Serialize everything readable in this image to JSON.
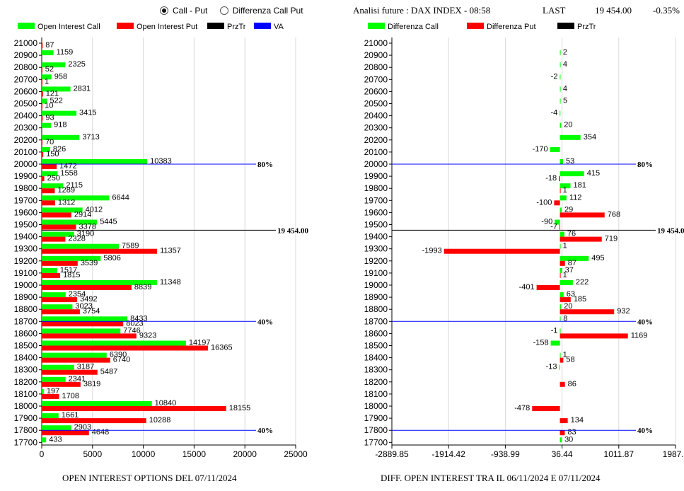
{
  "controls": {
    "radio_options": [
      {
        "label": "Call - Put",
        "selected": true
      },
      {
        "label": "Differenza Call Put",
        "selected": false
      }
    ]
  },
  "header": {
    "title": "Analisi future : DAX INDEX - 08:58",
    "last_label": "LAST",
    "last_value": "19 454.00",
    "change": "-0.35%"
  },
  "colors": {
    "call": "#00ff00",
    "put": "#ff0000",
    "prztr": "#000000",
    "va": "#0000ff"
  },
  "chart_data": [
    {
      "type": "bar",
      "orientation": "horizontal",
      "title": "OPEN INTEREST OPTIONS DEL 07/11/2024",
      "legend": [
        "Open Interest Call",
        "Open Interest Put",
        "PrzTr",
        "VA"
      ],
      "legend_position": "top",
      "grid": true,
      "xlim": [
        0,
        25000
      ],
      "xticks": [
        "0",
        "5000",
        "10000",
        "15000",
        "20000",
        "25000"
      ],
      "categories": [
        "21000",
        "20900",
        "20800",
        "20700",
        "20600",
        "20500",
        "20400",
        "20300",
        "20200",
        "20100",
        "20000",
        "19900",
        "19800",
        "19700",
        "19600",
        "19500",
        "19400",
        "19300",
        "19200",
        "19100",
        "19000",
        "18900",
        "18800",
        "18700",
        "18600",
        "18500",
        "18400",
        "18300",
        "18200",
        "18100",
        "18000",
        "17900",
        "17800",
        "17700"
      ],
      "series": [
        {
          "name": "Open Interest Call",
          "values": [
            0,
            1159,
            2325,
            958,
            2831,
            522,
            3415,
            918,
            3713,
            826,
            10383,
            1558,
            2115,
            6644,
            4012,
            5445,
            3190,
            7589,
            5806,
            1517,
            11348,
            2354,
            3023,
            8433,
            7746,
            14197,
            6390,
            3187,
            2341,
            197,
            10840,
            1661,
            2903,
            433
          ],
          "labels": [
            "",
            "1159",
            "2325",
            "958",
            "2831",
            "522",
            "3415",
            "918",
            "3713",
            "826",
            "10383",
            "1558",
            "2115",
            "6644",
            "4012",
            "5445",
            "3190",
            "7589",
            "5806",
            "1517",
            "11348",
            "2354",
            "3023",
            "8433",
            "7746",
            "14197",
            "6390",
            "3187",
            "2341",
            "197",
            "10840",
            "1661",
            "2903",
            "433"
          ]
        },
        {
          "name": "Open Interest Put",
          "values": [
            87,
            0,
            52,
            1,
            121,
            10,
            93,
            0,
            70,
            150,
            1472,
            250,
            1289,
            1312,
            2914,
            3378,
            2328,
            11357,
            3539,
            1815,
            8839,
            3492,
            3754,
            8023,
            9323,
            16365,
            6740,
            5487,
            3819,
            1708,
            18155,
            10288,
            4648,
            0
          ],
          "labels": [
            "87",
            "",
            "52",
            "1",
            "121",
            "10",
            "93",
            "",
            "70",
            "150",
            "1472",
            "250",
            "1289",
            "1312",
            "2914",
            "3378",
            "2328",
            "11357",
            "3539",
            "1815",
            "8839",
            "3492",
            "3754",
            "8023",
            "9323",
            "16365",
            "6740",
            "5487",
            "3819",
            "1708",
            "18155",
            "10288",
            "4648",
            ""
          ]
        }
      ],
      "lines": [
        {
          "name": "PrzTr",
          "at": "19454.00",
          "label": "19 454.00"
        },
        {
          "name": "VA",
          "at": "20000",
          "label": "80%"
        },
        {
          "name": "VA",
          "at": "18700",
          "label": "40%"
        },
        {
          "name": "VA",
          "at": "17800",
          "label": "40%"
        }
      ]
    },
    {
      "type": "bar",
      "orientation": "horizontal",
      "title": "DIFF. OPEN INTEREST TRA IL 06/11/2024 E 07/11/2024",
      "legend": [
        "Differenza Call",
        "Differenza Put",
        "PrzTr"
      ],
      "legend_position": "top",
      "grid": true,
      "xlim": [
        -2889.85,
        1987.3
      ],
      "xticks": [
        "-2889.85",
        "-1914.42",
        "-938.99",
        "36.44",
        "1011.87",
        "1987.3"
      ],
      "categories": [
        "21000",
        "20900",
        "20800",
        "20700",
        "20600",
        "20500",
        "20400",
        "20300",
        "20200",
        "20100",
        "20000",
        "19900",
        "19800",
        "19700",
        "19600",
        "19500",
        "19400",
        "19300",
        "19200",
        "19100",
        "19000",
        "18900",
        "18800",
        "18700",
        "18600",
        "18500",
        "18400",
        "18300",
        "18200",
        "18100",
        "18000",
        "17900",
        "17800",
        "17700"
      ],
      "series": [
        {
          "name": "Differenza Call",
          "values": [
            0,
            2,
            4,
            -2,
            4,
            5,
            -4,
            20,
            354,
            -170,
            53,
            415,
            181,
            112,
            29,
            -90,
            76,
            1,
            495,
            37,
            222,
            63,
            20,
            8,
            -1,
            -158,
            1,
            -13,
            0,
            0,
            0,
            0,
            0,
            30
          ],
          "labels": [
            "",
            "2",
            "4",
            "-2",
            "4",
            "5",
            "-4",
            "20",
            "354",
            "-170",
            "53",
            "415",
            "181",
            "112",
            "29",
            "-90",
            "76",
            "1",
            "495",
            "37",
            "222",
            "63",
            "20",
            "8",
            "-1",
            "-158",
            "1",
            "-13",
            "",
            "",
            "",
            "",
            "",
            "30"
          ]
        },
        {
          "name": "Differenza Put",
          "values": [
            0,
            0,
            0,
            0,
            0,
            0,
            0,
            0,
            0,
            0,
            0,
            -18,
            1,
            -100,
            768,
            -7,
            719,
            -1993,
            87,
            1,
            -401,
            185,
            932,
            0,
            1169,
            0,
            58,
            0,
            86,
            0,
            -478,
            134,
            83,
            0
          ],
          "labels": [
            "",
            "",
            "",
            "",
            "",
            "",
            "",
            "",
            "",
            "",
            "",
            "-18",
            "1",
            "-100",
            "768",
            "-7",
            "719",
            "-1993",
            "87",
            "1",
            "-401",
            "185",
            "932",
            "",
            "1169",
            "",
            "58",
            "",
            "86",
            "",
            "-478",
            "134",
            "83",
            ""
          ]
        }
      ],
      "lines": [
        {
          "name": "PrzTr",
          "at": "19454.00",
          "label": "19 454.00"
        },
        {
          "name": "VA",
          "at": "20000",
          "label": "80%"
        },
        {
          "name": "VA",
          "at": "18700",
          "label": "40%"
        },
        {
          "name": "VA",
          "at": "17800",
          "label": "40%"
        }
      ]
    }
  ]
}
